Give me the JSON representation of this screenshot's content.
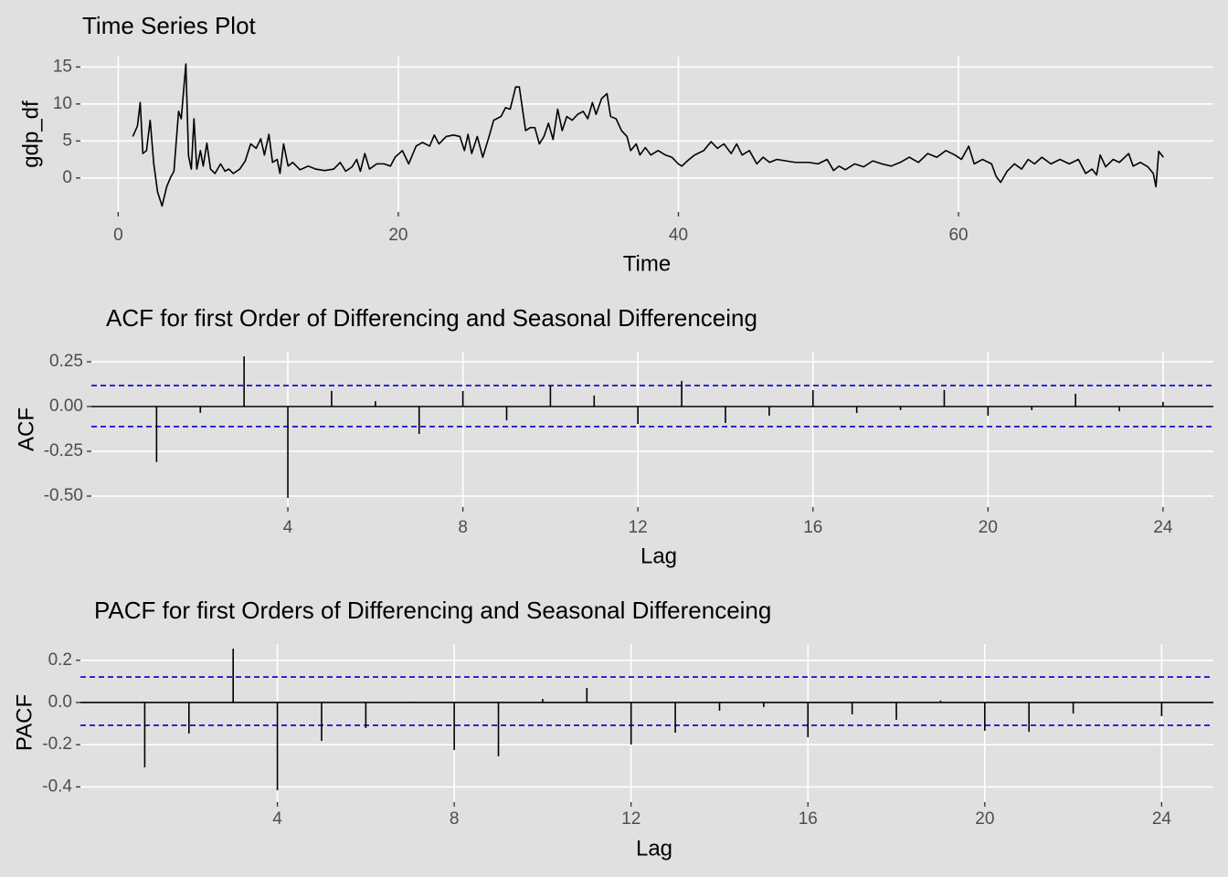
{
  "chart_data": [
    {
      "type": "line",
      "title": "Time Series Plot",
      "x_label": "Time",
      "y_label": "gdp_df",
      "color": "#000000",
      "grid": true,
      "xlim": [
        -2.7,
        78.2
      ],
      "ylim": [
        -4.6,
        16.4
      ],
      "xticks": [
        0,
        20,
        40,
        60
      ],
      "yticks": [
        0,
        5,
        10,
        15
      ],
      "x": [
        1.04,
        1.37,
        1.57,
        1.76,
        2.02,
        2.28,
        2.54,
        2.81,
        3.13,
        3.46,
        3.72,
        3.98,
        4.31,
        4.5,
        4.83,
        5.02,
        5.22,
        5.41,
        5.61,
        5.87,
        6.07,
        6.33,
        6.59,
        6.91,
        7.31,
        7.63,
        7.89,
        8.22,
        8.68,
        9.07,
        9.46,
        9.85,
        10.18,
        10.44,
        10.76,
        11.02,
        11.35,
        11.55,
        11.81,
        12.13,
        12.46,
        12.98,
        13.57,
        14.09,
        14.74,
        15.39,
        15.85,
        16.24,
        16.7,
        17.03,
        17.29,
        17.61,
        17.94,
        18.46,
        18.98,
        19.44,
        19.77,
        20.29,
        20.74,
        21.27,
        21.72,
        22.24,
        22.57,
        22.9,
        23.42,
        23.94,
        24.4,
        24.72,
        24.98,
        25.24,
        25.64,
        26.03,
        26.48,
        26.81,
        27.33,
        27.66,
        27.99,
        28.38,
        28.64,
        29.09,
        29.42,
        29.75,
        30.07,
        30.4,
        30.72,
        31.05,
        31.38,
        31.7,
        32.03,
        32.42,
        32.81,
        33.2,
        33.53,
        33.86,
        34.12,
        34.51,
        34.9,
        35.16,
        35.55,
        35.94,
        36.33,
        36.59,
        36.99,
        37.25,
        37.64,
        38.03,
        38.55,
        39.07,
        39.53,
        39.99,
        40.25,
        40.64,
        41.16,
        41.81,
        42.33,
        42.79,
        43.25,
        43.77,
        44.16,
        44.55,
        45.07,
        45.6,
        46.05,
        46.51,
        47.03,
        47.68,
        48.34,
        49.32,
        49.97,
        50.62,
        51.08,
        51.47,
        51.92,
        52.58,
        53.23,
        53.88,
        54.53,
        55.19,
        55.84,
        56.49,
        57.14,
        57.8,
        58.45,
        59.1,
        59.75,
        60.21,
        60.73,
        61.12,
        61.71,
        62.36,
        62.69,
        63.01,
        63.47,
        63.99,
        64.51,
        64.97,
        65.43,
        65.95,
        66.6,
        67.25,
        67.91,
        68.56,
        69.08,
        69.54,
        69.86,
        70.12,
        70.51,
        71.04,
        71.49,
        72.15,
        72.47,
        72.99,
        73.52,
        73.91,
        74.1,
        74.3,
        74.63
      ],
      "values": [
        5.6,
        7,
        10.2,
        3.3,
        3.7,
        7.8,
        1.9,
        -1.9,
        -3.8,
        -1.2,
        0,
        0.9,
        9,
        8,
        15.4,
        3,
        1.2,
        8,
        1.2,
        3.7,
        1.6,
        4.7,
        1.2,
        0.6,
        1.9,
        0.9,
        1.2,
        0.6,
        1.2,
        2.3,
        4.6,
        4,
        5.3,
        3.1,
        5.9,
        2.1,
        2.5,
        0.6,
        4.6,
        1.6,
        2.1,
        1.1,
        1.6,
        1.2,
        1,
        1.2,
        2.1,
        0.9,
        1.5,
        2.5,
        0.9,
        3.3,
        1.2,
        1.9,
        1.9,
        1.6,
        2.8,
        3.7,
        1.9,
        4.3,
        4.8,
        4.3,
        5.8,
        4.6,
        5.6,
        5.8,
        5.6,
        3.7,
        5.9,
        3.3,
        5.6,
        2.8,
        5.6,
        7.8,
        8.3,
        9.5,
        9.3,
        12.3,
        12.3,
        6.4,
        6.8,
        6.8,
        4.6,
        5.6,
        7.4,
        5.2,
        9.3,
        6.4,
        8.3,
        7.8,
        8.6,
        9,
        8,
        10.2,
        8.6,
        10.7,
        11.4,
        8.3,
        8,
        6.4,
        5.6,
        3.7,
        4.6,
        3.1,
        4.1,
        3.1,
        3.7,
        3.1,
        2.8,
        1.9,
        1.6,
        2.3,
        3.1,
        3.7,
        4.9,
        4,
        4.6,
        3.3,
        4.6,
        3.1,
        3.7,
        1.9,
        2.8,
        2.1,
        2.5,
        2.3,
        2.1,
        2.1,
        1.9,
        2.5,
        1,
        1.6,
        1.1,
        1.9,
        1.5,
        2.3,
        1.9,
        1.6,
        2.1,
        2.8,
        2.1,
        3.3,
        2.8,
        3.7,
        3.1,
        2.5,
        4.3,
        1.9,
        2.5,
        1.9,
        0.2,
        -0.6,
        0.9,
        1.9,
        1.2,
        2.5,
        1.9,
        2.8,
        1.9,
        2.5,
        1.9,
        2.5,
        0.6,
        1.2,
        0.4,
        3.1,
        1.5,
        2.5,
        2.1,
        3.3,
        1.6,
        2.1,
        1.5,
        0.6,
        -1.2,
        3.6,
        2.8
      ]
    },
    {
      "type": "stem",
      "title": "ACF for first Order of Differencing and Seasonal Differenceing",
      "x_label": "Lag",
      "y_label": "ACF",
      "color": "#000000",
      "ci_color": "#0000cc",
      "grid": true,
      "xlim": [
        -0.49,
        25.15
      ],
      "ylim": [
        -0.561,
        0.306
      ],
      "xticks": [
        4,
        8,
        12,
        16,
        20,
        24
      ],
      "yticks": [
        {
          "value": -0.5,
          "label": "-0.50"
        },
        -0.25,
        {
          "value": 0,
          "label": "0.00"
        },
        0.25
      ],
      "ci_lines": [
        0.117,
        -0.112
      ],
      "x": [
        1,
        2,
        3,
        4,
        5,
        6,
        7,
        8,
        9,
        10,
        11,
        12,
        13,
        14,
        15,
        16,
        17,
        18,
        19,
        20,
        21,
        22,
        23,
        24
      ],
      "values": [
        -0.31,
        -0.035,
        0.28,
        -0.51,
        0.087,
        0.03,
        -0.153,
        0.087,
        -0.077,
        0.117,
        0.061,
        -0.097,
        0.143,
        -0.092,
        -0.051,
        0.092,
        -0.036,
        -0.02,
        0.092,
        -0.051,
        -0.02,
        0.071,
        -0.026,
        0.026
      ]
    },
    {
      "type": "stem",
      "title": "PACF for first Orders of Differencing and Seasonal Differenceing",
      "x_label": "Lag",
      "y_label": "PACF",
      "color": "#000000",
      "ci_color": "#0000cc",
      "grid": true,
      "xlim": [
        -0.455,
        25.17
      ],
      "ylim": [
        -0.472,
        0.277
      ],
      "xticks": [
        4,
        8,
        12,
        16,
        20,
        24
      ],
      "yticks": [
        -0.4,
        -0.2,
        {
          "value": 0,
          "label": "0.0"
        },
        0.2
      ],
      "ci_lines": [
        0.121,
        -0.108
      ],
      "x": [
        1,
        2,
        3,
        4,
        5,
        6,
        7,
        8,
        9,
        10,
        11,
        12,
        13,
        14,
        15,
        16,
        17,
        18,
        19,
        20,
        21,
        22,
        23,
        24
      ],
      "values": [
        -0.307,
        -0.147,
        0.255,
        -0.416,
        -0.182,
        -0.121,
        0.004,
        -0.225,
        -0.255,
        0.017,
        0.069,
        -0.199,
        -0.143,
        -0.039,
        -0.022,
        -0.165,
        -0.056,
        -0.082,
        0.009,
        -0.134,
        -0.139,
        -0.052,
        0.003,
        -0.065
      ]
    }
  ]
}
